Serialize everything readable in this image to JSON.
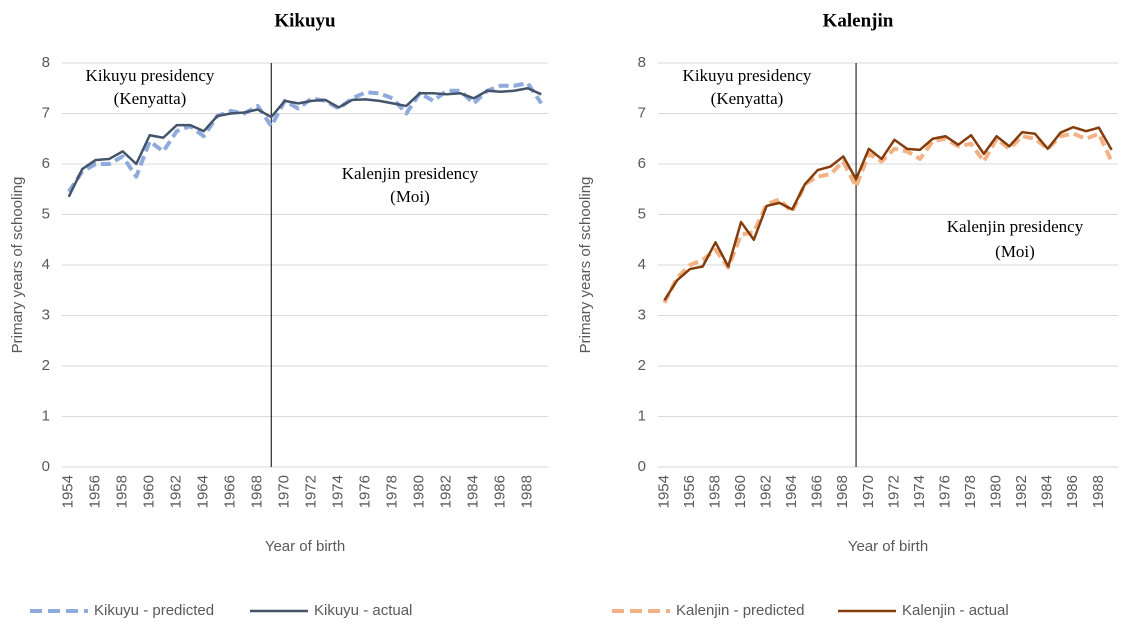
{
  "chart_data": [
    {
      "type": "line",
      "title": "Kikuyu",
      "x_label": "Year of birth",
      "y_label": "Primary years of schooling",
      "x": [
        1954,
        1955,
        1956,
        1957,
        1958,
        1959,
        1960,
        1961,
        1962,
        1963,
        1964,
        1965,
        1966,
        1967,
        1968,
        1969,
        1970,
        1971,
        1972,
        1973,
        1974,
        1975,
        1976,
        1977,
        1978,
        1979,
        1980,
        1981,
        1982,
        1983,
        1984,
        1985,
        1986,
        1987,
        1988,
        1989
      ],
      "xlim": [
        1953.5,
        1989.5
      ],
      "xticks": [
        1954,
        1956,
        1958,
        1960,
        1962,
        1964,
        1966,
        1968,
        1970,
        1972,
        1974,
        1976,
        1978,
        1980,
        1982,
        1984,
        1986,
        1988
      ],
      "ylim": [
        0,
        8
      ],
      "yticks": [
        0,
        1,
        2,
        3,
        4,
        5,
        6,
        7,
        8
      ],
      "grid": true,
      "legend": "bottom",
      "reference_line_x": 1969,
      "annotations": [
        "Kikuyu presidency",
        "(Kenyatta)",
        "Kalenjin presidency",
        "(Moi)"
      ],
      "series": [
        {
          "name": "Kikuyu - predicted",
          "color": "#8faadc",
          "dashed": true,
          "values": [
            5.45,
            5.85,
            6.0,
            6.0,
            6.15,
            5.75,
            6.45,
            6.25,
            6.65,
            6.75,
            6.55,
            6.95,
            7.05,
            7.0,
            7.15,
            6.75,
            7.25,
            7.1,
            7.3,
            7.25,
            7.1,
            7.3,
            7.42,
            7.4,
            7.3,
            7.0,
            7.4,
            7.25,
            7.45,
            7.45,
            7.2,
            7.45,
            7.55,
            7.55,
            7.6,
            7.2
          ]
        },
        {
          "name": "Kikuyu - actual",
          "color": "#44546a",
          "dashed": false,
          "values": [
            5.35,
            5.9,
            6.08,
            6.1,
            6.25,
            6.0,
            6.57,
            6.52,
            6.77,
            6.77,
            6.65,
            6.95,
            7.0,
            7.02,
            7.08,
            6.93,
            7.25,
            7.2,
            7.25,
            7.27,
            7.12,
            7.27,
            7.28,
            7.25,
            7.2,
            7.15,
            7.4,
            7.4,
            7.38,
            7.4,
            7.3,
            7.45,
            7.43,
            7.45,
            7.5,
            7.38
          ]
        }
      ]
    },
    {
      "type": "line",
      "title": "Kalenjin",
      "x_label": "Year of birth",
      "y_label": "Primary years of schooling",
      "x": [
        1954,
        1955,
        1956,
        1957,
        1958,
        1959,
        1960,
        1961,
        1962,
        1963,
        1964,
        1965,
        1966,
        1967,
        1968,
        1969,
        1970,
        1971,
        1972,
        1973,
        1974,
        1975,
        1976,
        1977,
        1978,
        1979,
        1980,
        1981,
        1982,
        1983,
        1984,
        1985,
        1986,
        1987,
        1988,
        1989
      ],
      "xlim": [
        1953.5,
        1989.5
      ],
      "xticks": [
        1954,
        1956,
        1958,
        1960,
        1962,
        1964,
        1966,
        1968,
        1970,
        1972,
        1974,
        1976,
        1978,
        1980,
        1982,
        1984,
        1986,
        1988
      ],
      "ylim": [
        0,
        8
      ],
      "yticks": [
        0,
        1,
        2,
        3,
        4,
        5,
        6,
        7,
        8
      ],
      "grid": true,
      "legend": "bottom",
      "reference_line_x": 1969,
      "annotations": [
        "Kikuyu presidency",
        "(Kenyatta)",
        "Kalenjin presidency",
        "(Moi)"
      ],
      "series": [
        {
          "name": "Kalenjin - predicted",
          "color": "#f4b183",
          "dashed": true,
          "values": [
            3.25,
            3.75,
            4.0,
            4.1,
            4.3,
            3.95,
            4.6,
            4.65,
            5.2,
            5.3,
            5.05,
            5.6,
            5.75,
            5.8,
            6.05,
            5.55,
            6.2,
            6.05,
            6.3,
            6.25,
            6.1,
            6.45,
            6.5,
            6.35,
            6.4,
            6.05,
            6.5,
            6.3,
            6.55,
            6.5,
            6.3,
            6.55,
            6.6,
            6.5,
            6.6,
            6.05
          ]
        },
        {
          "name": "Kalenjin - actual",
          "color": "#843c0c",
          "dashed": false,
          "values": [
            3.3,
            3.7,
            3.92,
            3.97,
            4.45,
            3.97,
            4.85,
            4.5,
            5.17,
            5.23,
            5.1,
            5.6,
            5.88,
            5.95,
            6.15,
            5.7,
            6.3,
            6.1,
            6.48,
            6.3,
            6.28,
            6.5,
            6.55,
            6.38,
            6.57,
            6.2,
            6.55,
            6.35,
            6.63,
            6.6,
            6.3,
            6.62,
            6.73,
            6.65,
            6.72,
            6.28
          ]
        }
      ]
    }
  ]
}
